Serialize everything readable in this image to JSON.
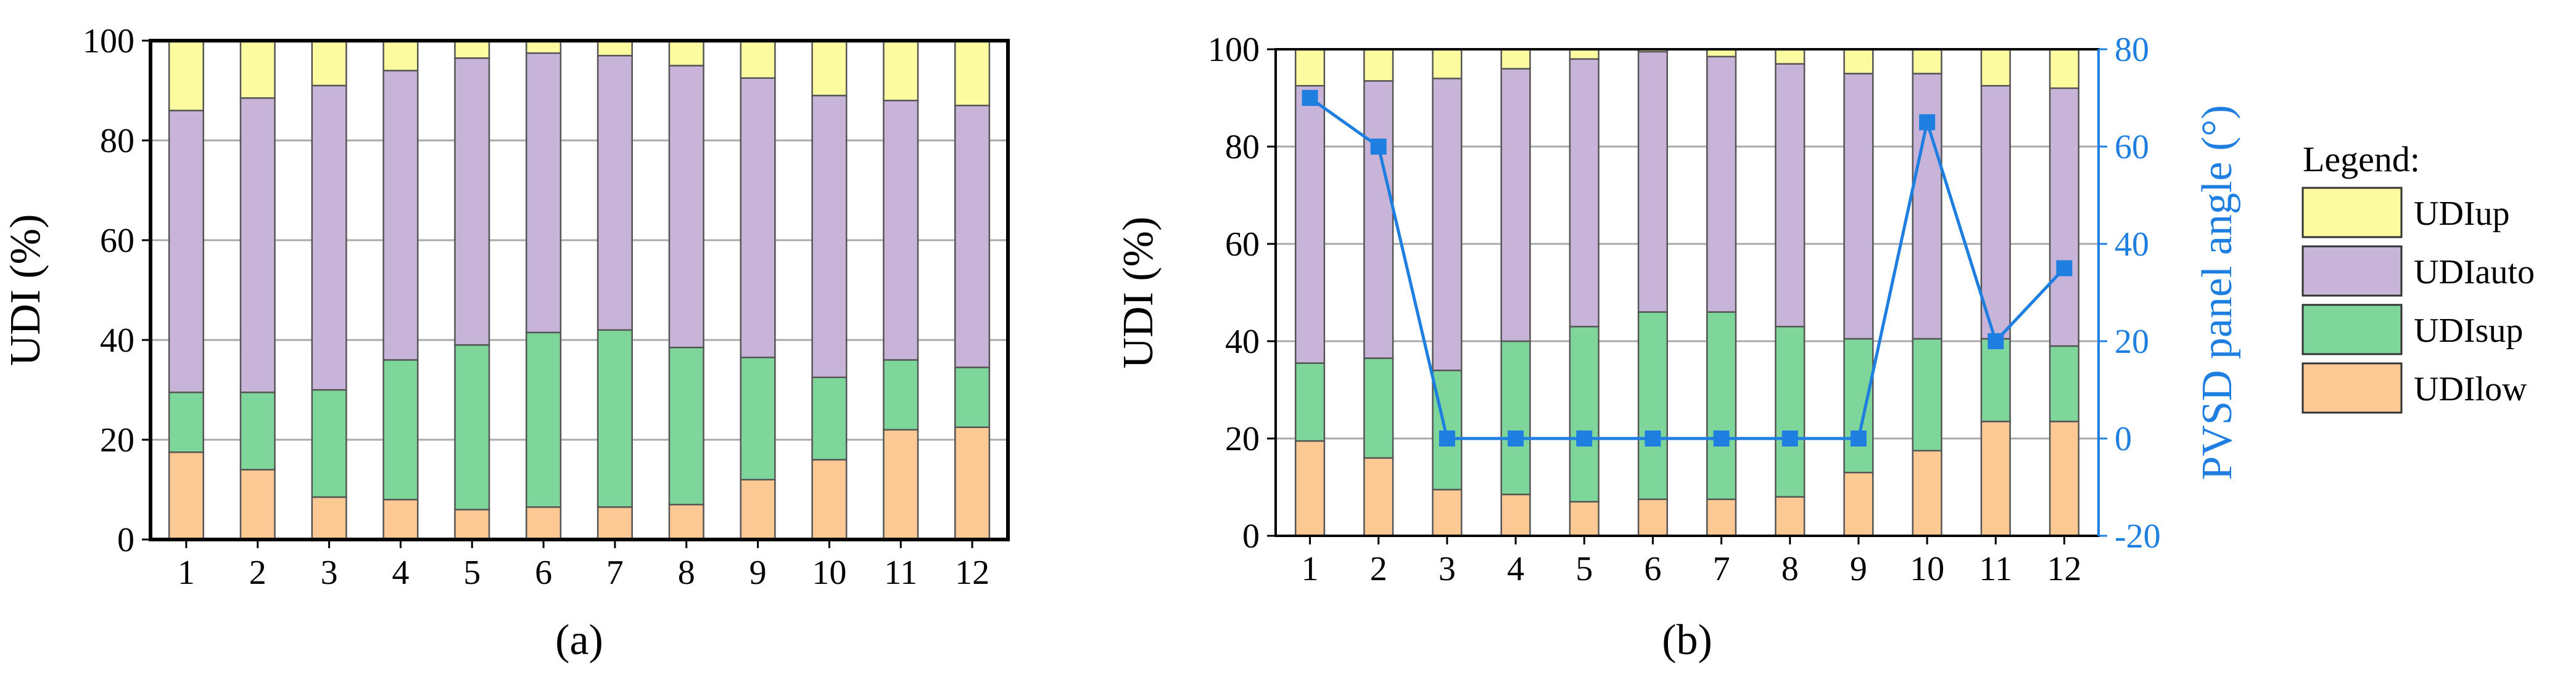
{
  "chart_data": [
    {
      "type": "bar",
      "stacked": true,
      "panel_label": "(a)",
      "categories": [
        "1",
        "2",
        "3",
        "4",
        "5",
        "6",
        "7",
        "8",
        "9",
        "10",
        "11",
        "12"
      ],
      "ylabel": "UDI (%)",
      "ylim": [
        0,
        100
      ],
      "yticks": [
        0,
        20,
        40,
        60,
        80,
        100
      ],
      "grid": true,
      "series": [
        {
          "name": "UDIlow",
          "values": [
            17.5,
            14,
            8.5,
            8,
            6,
            6.5,
            6.5,
            7,
            12,
            16,
            22,
            22.5
          ]
        },
        {
          "name": "UDIsup",
          "values": [
            12,
            15.5,
            21.5,
            28,
            33,
            35,
            35.5,
            31.5,
            24.5,
            16.5,
            14,
            12
          ]
        },
        {
          "name": "UDIauto",
          "values": [
            56.5,
            59,
            61,
            58,
            57.5,
            56,
            55,
            56.5,
            56,
            56.5,
            52,
            52.5
          ]
        },
        {
          "name": "UDIup",
          "values": [
            14,
            11.5,
            9,
            6,
            3.5,
            2.5,
            3,
            5,
            7.5,
            11,
            12,
            13
          ]
        }
      ]
    },
    {
      "type": "bar",
      "stacked": true,
      "panel_label": "(b)",
      "categories": [
        "1",
        "2",
        "3",
        "4",
        "5",
        "6",
        "7",
        "8",
        "9",
        "10",
        "11",
        "12"
      ],
      "ylabel": "UDI (%)",
      "ylim": [
        0,
        100
      ],
      "yticks": [
        0,
        20,
        40,
        60,
        80,
        100
      ],
      "y2label": "PVSD panel angle (°)",
      "y2lim": [
        -20,
        80
      ],
      "y2ticks": [
        -20,
        0,
        20,
        40,
        60,
        80
      ],
      "grid": true,
      "legend_placement": "right",
      "legend_title": "Legend:",
      "series": [
        {
          "name": "UDIlow",
          "values": [
            19.5,
            16,
            9.5,
            8.5,
            7,
            7.5,
            7.5,
            8,
            13,
            17.5,
            23.5,
            23.5
          ]
        },
        {
          "name": "UDIsup",
          "values": [
            16,
            20.5,
            24.5,
            31.5,
            36,
            38.5,
            38.5,
            35,
            27.5,
            23,
            17,
            15.5
          ]
        },
        {
          "name": "UDIauto",
          "values": [
            57,
            57,
            60,
            56,
            55,
            53.5,
            52.5,
            54,
            54.5,
            54.5,
            52,
            53
          ]
        },
        {
          "name": "UDIup",
          "values": [
            7.5,
            6.5,
            6,
            4,
            2,
            0.5,
            1.5,
            3,
            5,
            5,
            7.5,
            8
          ]
        }
      ],
      "line_series": {
        "name": "PVSD panel angle",
        "axis": "right",
        "values": [
          70,
          60,
          0,
          0,
          0,
          0,
          0,
          0,
          0,
          65,
          20,
          35
        ]
      }
    }
  ],
  "colors": {
    "UDIlow": "#fcc894",
    "UDIsup": "#7fd69a",
    "UDIauto": "#c8b4d9",
    "UDIup": "#fdfb9f",
    "angle_line": "#1e7fe0",
    "grid": "#a9a9a9",
    "bar_outline": "#555555"
  }
}
